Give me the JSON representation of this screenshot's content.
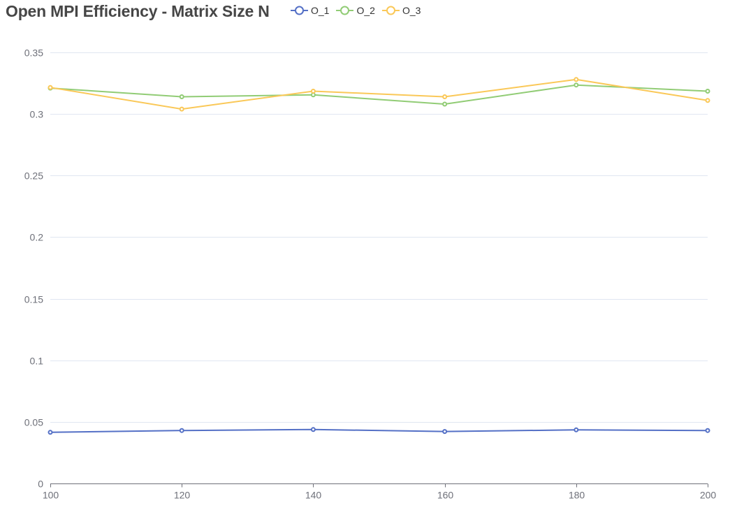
{
  "colors": {
    "O_1": "#5470c6",
    "O_2": "#91cc75",
    "O_3": "#fac858",
    "grid": "#e0e6f1",
    "axis": "#6e7079"
  },
  "chart_data": {
    "type": "line",
    "title": "Open MPI Efficiency - Matrix Size N",
    "xlabel": "",
    "ylabel": "",
    "x": [
      100,
      120,
      140,
      160,
      180,
      200
    ],
    "x_tick_labels": [
      "100",
      "120",
      "140",
      "160",
      "180",
      "200"
    ],
    "ylim": [
      0,
      0.35
    ],
    "y_ticks": [
      0,
      0.05,
      0.1,
      0.15,
      0.2,
      0.25,
      0.3,
      0.35
    ],
    "y_tick_labels": [
      "0",
      "0.05",
      "0.1",
      "0.15",
      "0.2",
      "0.25",
      "0.3",
      "0.35"
    ],
    "grid": true,
    "legend_position": "top",
    "series": [
      {
        "name": "O_1",
        "values": [
          0.0415,
          0.043,
          0.0438,
          0.0422,
          0.0435,
          0.043
        ]
      },
      {
        "name": "O_2",
        "values": [
          0.321,
          0.314,
          0.3155,
          0.308,
          0.3235,
          0.3185
        ]
      },
      {
        "name": "O_3",
        "values": [
          0.3215,
          0.304,
          0.3185,
          0.314,
          0.328,
          0.311
        ]
      }
    ]
  }
}
